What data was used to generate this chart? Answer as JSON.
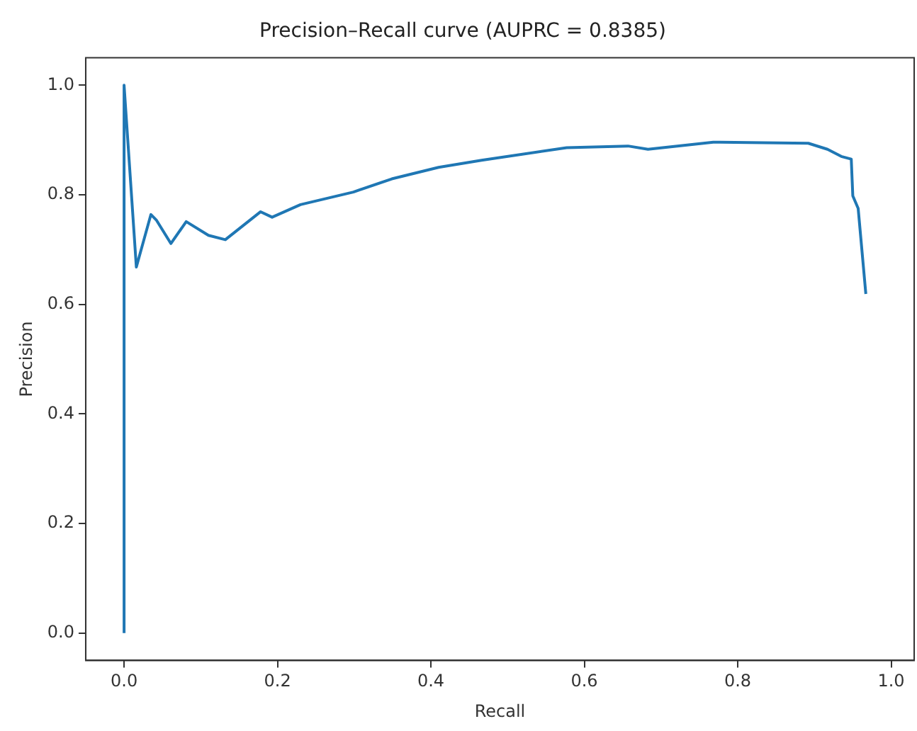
{
  "chart_data": {
    "type": "line",
    "title": "Precision–Recall curve (AUPRC = 0.8385)",
    "xlabel": "Recall",
    "ylabel": "Precision",
    "x": [
      0,
      0,
      0.016,
      0.035,
      0.042,
      0.061,
      0.081,
      0.11,
      0.132,
      0.178,
      0.193,
      0.23,
      0.299,
      0.349,
      0.41,
      0.466,
      0.577,
      0.657,
      0.683,
      0.768,
      0.892,
      0.917,
      0.935,
      0.948,
      0.95,
      0.957,
      0.967
    ],
    "series": [
      {
        "color": "#1f77b4",
        "values": [
          0,
          1.0,
          0.668,
          0.764,
          0.754,
          0.711,
          0.751,
          0.726,
          0.718,
          0.769,
          0.759,
          0.782,
          0.805,
          0.829,
          0.85,
          0.863,
          0.886,
          0.889,
          0.883,
          0.896,
          0.894,
          0.883,
          0.87,
          0.865,
          0.798,
          0.775,
          0.619
        ]
      }
    ],
    "xlim": [
      -0.05,
      1.03
    ],
    "ylim": [
      -0.05,
      1.05
    ],
    "xticks": [
      {
        "value": 0,
        "label": "0.0"
      },
      0.2,
      0.4,
      0.6,
      0.8,
      {
        "value": 1,
        "label": "1.0"
      }
    ],
    "yticks": [
      {
        "value": 0,
        "label": "0.0"
      },
      0.2,
      0.4,
      0.6,
      0.8,
      {
        "value": 1,
        "label": "1.0"
      }
    ],
    "grid": false,
    "legend": false,
    "marker": "none",
    "line_style": "solid"
  }
}
